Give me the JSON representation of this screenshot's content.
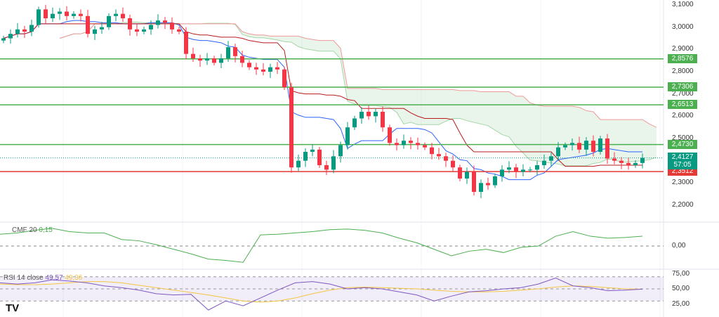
{
  "chart_data": {
    "type": "candlestick",
    "price_axis": {
      "ticks": [
        "3,1000",
        "3,0000",
        "2,9000",
        "2,8000",
        "2,7000",
        "2,6000",
        "2,5000",
        "2,3000",
        "2,2000"
      ],
      "tick_values": [
        3.1,
        3.0,
        2.9,
        2.8,
        2.7,
        2.6,
        2.5,
        2.3,
        2.2
      ],
      "ylim": [
        2.15,
        3.12
      ]
    },
    "closes": [
      2.95,
      2.97,
      2.99,
      2.98,
      3.01,
      3.08,
      3.04,
      3.06,
      3.07,
      3.05,
      3.06,
      3.05,
      2.97,
      2.99,
      3.0,
      3.05,
      3.06,
      3.04,
      2.99,
      2.98,
      2.99,
      3.01,
      3.03,
      3.02,
      2.99,
      2.98,
      2.88,
      2.86,
      2.85,
      2.86,
      2.84,
      2.86,
      2.91,
      2.87,
      2.84,
      2.82,
      2.81,
      2.8,
      2.82,
      2.81,
      2.73,
      2.37,
      2.4,
      2.44,
      2.45,
      2.38,
      2.36,
      2.42,
      2.47,
      2.55,
      2.59,
      2.62,
      2.6,
      2.62,
      2.55,
      2.48,
      2.47,
      2.49,
      2.48,
      2.47,
      2.46,
      2.43,
      2.42,
      2.4,
      2.37,
      2.32,
      2.35,
      2.26,
      2.3,
      2.29,
      2.33,
      2.36,
      2.37,
      2.35,
      2.36,
      2.36,
      2.38,
      2.4,
      2.42,
      2.46,
      2.47,
      2.48,
      2.45,
      2.49,
      2.44,
      2.5,
      2.41,
      2.4,
      2.39,
      2.38,
      2.39,
      2.4127
    ],
    "levels": [
      {
        "label": "2,8576",
        "value": 2.8576,
        "color": "#4caf50"
      },
      {
        "label": "2,7306",
        "value": 2.7306,
        "color": "#4caf50"
      },
      {
        "label": "2,6513",
        "value": 2.6513,
        "color": "#4caf50"
      },
      {
        "label": "2,4730",
        "value": 2.473,
        "color": "#4caf50"
      }
    ],
    "support": {
      "label": "2,3512",
      "value": 2.3512,
      "color": "#e53935"
    },
    "current": {
      "label": "2,4127",
      "value": 2.4127,
      "countdown": "57:05",
      "color": "#089981"
    },
    "colors": {
      "up": "#089981",
      "down": "#f23645",
      "tenkan": "#2962ff",
      "kijun": "#b71c1c"
    },
    "cmf": {
      "label": "CMF 20",
      "value": "0,15",
      "zero_label": "0,00",
      "ylim": [
        -0.35,
        0.35
      ],
      "values": [
        0.18,
        0.2,
        0.24,
        0.27,
        0.22,
        0.2,
        0.2,
        0.1,
        0.08,
        0.02,
        -0.05,
        -0.12,
        -0.2,
        -0.22,
        -0.25,
        0.17,
        0.18,
        0.2,
        0.22,
        0.25,
        0.26,
        0.24,
        0.2,
        0.12,
        0.05,
        -0.05,
        -0.15,
        -0.08,
        -0.05,
        -0.1,
        -0.02,
        0.0,
        0.15,
        0.22,
        0.15,
        0.12,
        0.13,
        0.15
      ]
    },
    "rsi": {
      "label": "RSI 14 close",
      "value": "49,57",
      "ma_value": "49,36",
      "ticks": [
        "75,00",
        "50,00",
        "25,00"
      ],
      "values": [
        60,
        58,
        60,
        65,
        63,
        60,
        55,
        52,
        48,
        42,
        40,
        41,
        15,
        30,
        22,
        35,
        48,
        60,
        62,
        58,
        50,
        52,
        50,
        45,
        40,
        30,
        38,
        45,
        47,
        50,
        52,
        58,
        68,
        55,
        52,
        47,
        48,
        49.57
      ],
      "ma": [
        58,
        57,
        57,
        58,
        60,
        62,
        62,
        60,
        56,
        52,
        48,
        44,
        40,
        35,
        30,
        28,
        30,
        35,
        42,
        48,
        52,
        53,
        52,
        51,
        50,
        48,
        46,
        45,
        45,
        46,
        48,
        50,
        53,
        55,
        54,
        52,
        50,
        49.36
      ]
    }
  }
}
